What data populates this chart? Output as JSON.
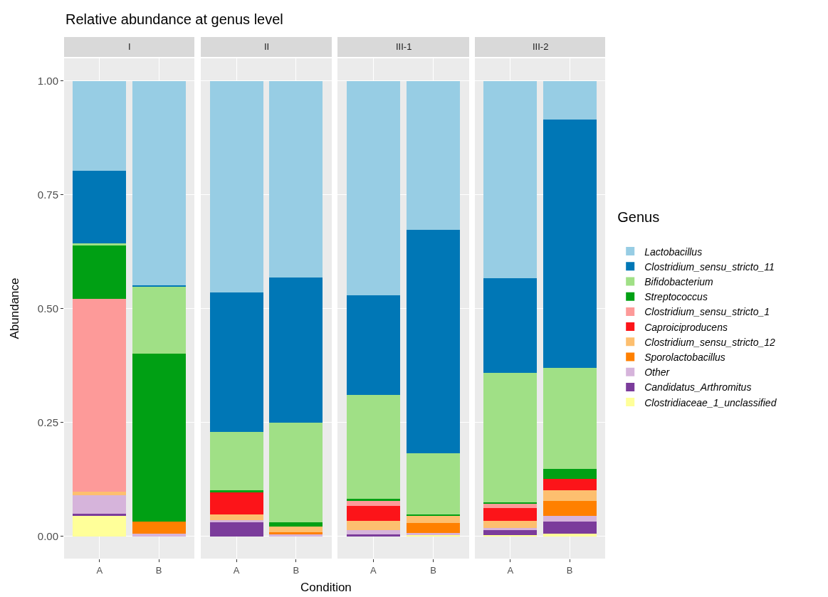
{
  "chart_data": [
    {
      "type": "bar",
      "title": "I",
      "annotations": [
        "Relative abundance at genus level"
      ],
      "ylabel": "Abundance",
      "legend_title": "Genus",
      "legend": "right",
      "stacked": true,
      "grid": true,
      "categories": [
        "A",
        "B"
      ],
      "ylim": [
        -0.049,
        1.05
      ],
      "yticks": [
        {
          "value": 0,
          "label": "0.00"
        },
        {
          "value": 0.25,
          "label": "0.25"
        },
        {
          "value": 0.5,
          "label": "0.50"
        },
        {
          "value": 0.75,
          "label": "0.75"
        },
        {
          "value": 1,
          "label": "1.00"
        }
      ],
      "series": [
        {
          "name": "Clostridiaceae_1_unclassified",
          "color": "#ffff99",
          "values": [
            0.046,
            0
          ]
        },
        {
          "name": "Candidatus_Arthromitus",
          "color": "#7b3c9b",
          "values": [
            0.003,
            0
          ]
        },
        {
          "name": "Other",
          "color": "#d6b4db",
          "values": [
            0.041,
            0.005
          ]
        },
        {
          "name": "Sporolactobacillus",
          "color": "#ff8000",
          "values": [
            0,
            0.027
          ]
        },
        {
          "name": "Clostridium_sensu_stricto_12",
          "color": "#fdbf6f",
          "values": [
            0.008,
            0
          ]
        },
        {
          "name": "Caproiciproducens",
          "color": "#fc1419",
          "values": [
            0,
            0
          ]
        },
        {
          "name": "Clostridium_sensu_stricto_1",
          "color": "#fd9a99",
          "values": [
            0.423,
            0
          ]
        },
        {
          "name": "Streptococcus",
          "color": "#00a014",
          "values": [
            0.119,
            0.37
          ]
        },
        {
          "name": "Bifidobacterium",
          "color": "#a0e086",
          "values": [
            0.003,
            0.147
          ]
        },
        {
          "name": "Clostridium_sensu_stricto_11",
          "color": "#0077b6",
          "values": [
            0.16,
            0.003
          ]
        },
        {
          "name": "Lactobacillus",
          "color": "#97cde4",
          "values": [
            0.197,
            0.448
          ]
        }
      ]
    },
    {
      "type": "bar",
      "title": "II",
      "xlabel": "Condition",
      "stacked": true,
      "grid": true,
      "tick_labels": "x",
      "categories": [
        "A",
        "B"
      ],
      "ylim": [
        -0.049,
        1.05
      ],
      "yticks": [
        0,
        0.25,
        0.5,
        0.75,
        1
      ],
      "series": [
        {
          "color": "#ffff99",
          "values": [
            0,
            0
          ]
        },
        {
          "color": "#7b3c9b",
          "values": [
            0.032,
            0
          ]
        },
        {
          "color": "#d6b4db",
          "values": [
            0.003,
            0.004
          ]
        },
        {
          "color": "#ff8000",
          "values": [
            0,
            0.005
          ]
        },
        {
          "color": "#fdbf6f",
          "values": [
            0.013,
            0.012
          ]
        },
        {
          "color": "#fc1419",
          "values": [
            0.049,
            0
          ]
        },
        {
          "color": "#fd9a99",
          "values": [
            0,
            0
          ]
        },
        {
          "color": "#00a014",
          "values": [
            0.004,
            0.009
          ]
        },
        {
          "color": "#a0e086",
          "values": [
            0.128,
            0.22
          ]
        },
        {
          "color": "#0077b6",
          "values": [
            0.306,
            0.319
          ]
        },
        {
          "color": "#97cde4",
          "values": [
            0.465,
            0.431
          ]
        }
      ]
    },
    {
      "type": "bar",
      "title": "III-1",
      "stacked": true,
      "grid": true,
      "tick_labels": "x",
      "categories": [
        "A",
        "B"
      ],
      "ylim": [
        -0.049,
        1.05
      ],
      "yticks": [
        0,
        0.25,
        0.5,
        0.75,
        1
      ],
      "series": [
        {
          "color": "#ffff99",
          "values": [
            0,
            0.002
          ]
        },
        {
          "color": "#7b3c9b",
          "values": [
            0.004,
            0
          ]
        },
        {
          "color": "#d6b4db",
          "values": [
            0.009,
            0.005
          ]
        },
        {
          "color": "#ff8000",
          "values": [
            0,
            0.022
          ]
        },
        {
          "color": "#fdbf6f",
          "values": [
            0.021,
            0.016
          ]
        },
        {
          "color": "#fc1419",
          "values": [
            0.033,
            0
          ]
        },
        {
          "color": "#fd9a99",
          "values": [
            0.012,
            0
          ]
        },
        {
          "color": "#00a014",
          "values": [
            0.003,
            0.003
          ]
        },
        {
          "color": "#a0e086",
          "values": [
            0.228,
            0.134
          ]
        },
        {
          "color": "#0077b6",
          "values": [
            0.219,
            0.492
          ]
        },
        {
          "color": "#97cde4",
          "values": [
            0.471,
            0.326
          ]
        }
      ]
    },
    {
      "type": "bar",
      "title": "III-2",
      "stacked": true,
      "grid": true,
      "tick_labels": "x",
      "categories": [
        "A",
        "B"
      ],
      "ylim": [
        -0.049,
        1.05
      ],
      "yticks": [
        0,
        0.25,
        0.5,
        0.75,
        1
      ],
      "series": [
        {
          "color": "#ffff99",
          "values": [
            0.002,
            0.005
          ]
        },
        {
          "color": "#7b3c9b",
          "values": [
            0.012,
            0.028
          ]
        },
        {
          "color": "#d6b4db",
          "values": [
            0.005,
            0.012
          ]
        },
        {
          "color": "#ff8000",
          "values": [
            0,
            0.033
          ]
        },
        {
          "color": "#fdbf6f",
          "values": [
            0.015,
            0.023
          ]
        },
        {
          "color": "#fc1419",
          "values": [
            0.028,
            0.025
          ]
        },
        {
          "color": "#fd9a99",
          "values": [
            0.01,
            0
          ]
        },
        {
          "color": "#00a014",
          "values": [
            0.003,
            0.022
          ]
        },
        {
          "color": "#a0e086",
          "values": [
            0.284,
            0.222
          ]
        },
        {
          "color": "#0077b6",
          "values": [
            0.208,
            0.546
          ]
        },
        {
          "color": "#97cde4",
          "values": [
            0.433,
            0.084
          ]
        }
      ]
    }
  ]
}
